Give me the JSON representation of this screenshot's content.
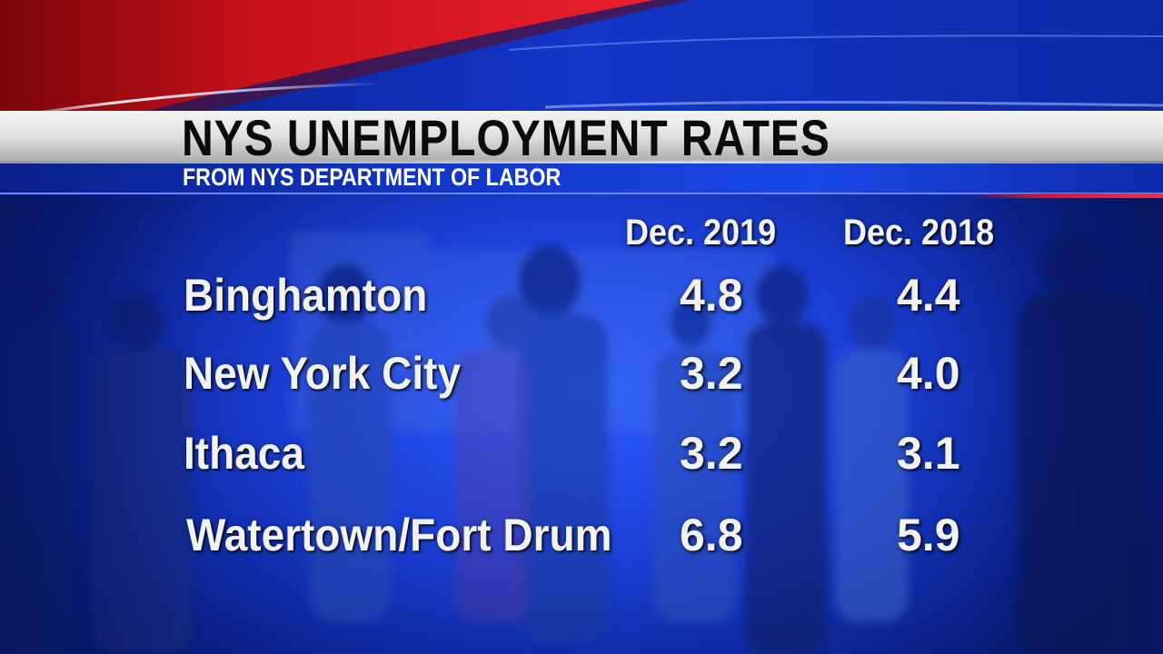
{
  "title": "NYS UNEMPLOYMENT RATES",
  "subtitle": "FROM NYS DEPARTMENT OF LABOR",
  "colors": {
    "accent_blue": "#1b3fd6",
    "accent_red": "#e01525",
    "title_bar": "#e2e2e2",
    "text": "#f2f2f2"
  },
  "chart_data": {
    "type": "table",
    "title": "NYS UNEMPLOYMENT RATES",
    "subtitle": "FROM NYS DEPARTMENT OF LABOR",
    "columns": [
      "Dec. 2019",
      "Dec. 2018"
    ],
    "rows": [
      {
        "label": "Binghamton",
        "values": [
          "4.8",
          "4.4"
        ]
      },
      {
        "label": "New York City",
        "values": [
          "3.2",
          "4.0"
        ]
      },
      {
        "label": "Ithaca",
        "values": [
          "3.2",
          "3.1"
        ]
      },
      {
        "label": "Watertown/Fort Drum",
        "values": [
          "6.8",
          "5.9"
        ]
      }
    ]
  }
}
